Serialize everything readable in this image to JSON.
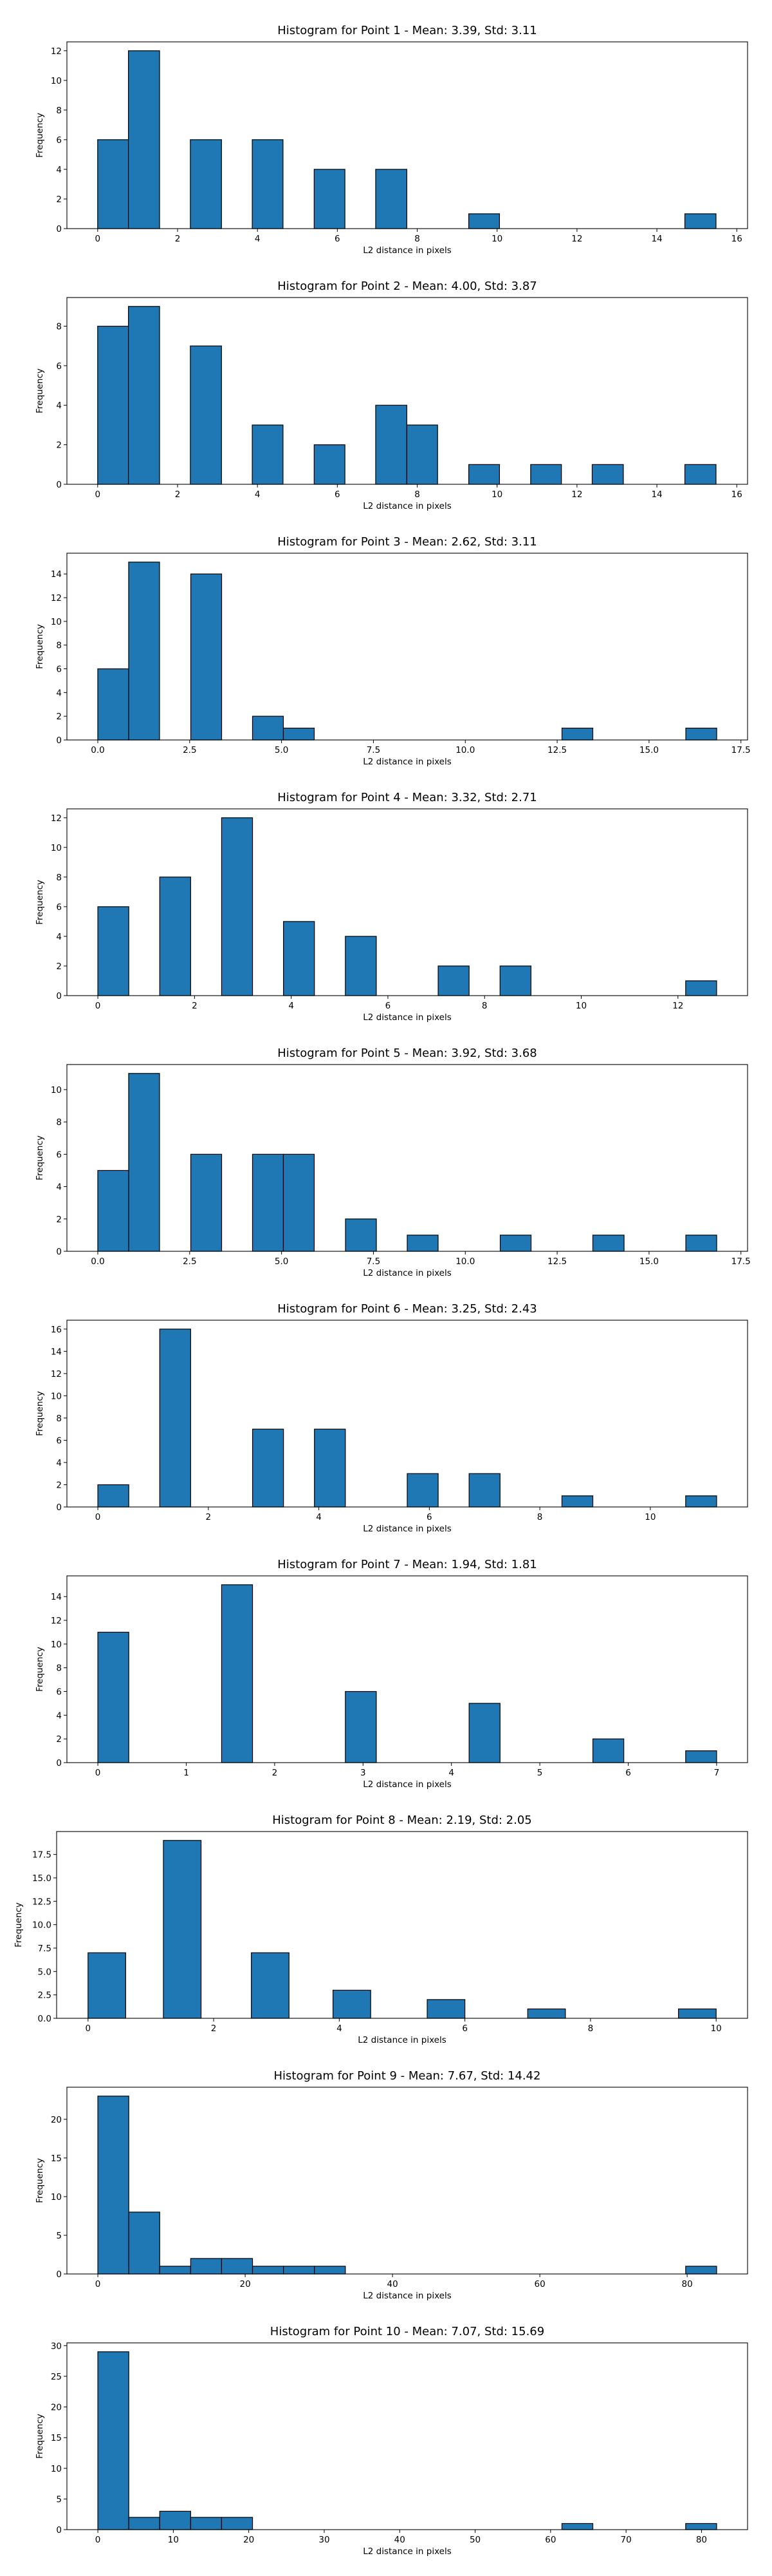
{
  "chart_data": [
    {
      "type": "bar",
      "title": "Histogram for Point 1 - Mean: 3.39, Std: 3.11",
      "xlabel": "L2 distance in pixels",
      "ylabel": "Frequency",
      "xlim": [
        -0.77,
        16.27
      ],
      "ylim": [
        0,
        12.6
      ],
      "xticks": [
        0,
        2,
        4,
        6,
        8,
        10,
        12,
        14,
        16
      ],
      "xticklabels": [
        "0",
        "2",
        "4",
        "6",
        "8",
        "10",
        "12",
        "14",
        "16"
      ],
      "yticks": [
        0,
        2,
        4,
        6,
        8,
        10,
        12
      ],
      "yticklabels": [
        "0",
        "2",
        "4",
        "6",
        "8",
        "10",
        "12"
      ],
      "bins": [
        {
          "x0": 0.0,
          "x1": 0.77,
          "value": 6
        },
        {
          "x0": 0.77,
          "x1": 1.55,
          "value": 12
        },
        {
          "x0": 2.32,
          "x1": 3.1,
          "value": 6
        },
        {
          "x0": 3.87,
          "x1": 4.64,
          "value": 6
        },
        {
          "x0": 5.42,
          "x1": 6.19,
          "value": 4
        },
        {
          "x0": 6.96,
          "x1": 7.74,
          "value": 4
        },
        {
          "x0": 9.29,
          "x1": 10.06,
          "value": 1
        },
        {
          "x0": 14.7,
          "x1": 15.48,
          "value": 1
        }
      ]
    },
    {
      "type": "bar",
      "title": "Histogram for Point 2 - Mean: 4.00, Std: 3.87",
      "xlabel": "L2 distance in pixels",
      "ylabel": "Frequency",
      "xlim": [
        -0.77,
        16.27
      ],
      "ylim": [
        0,
        9.45
      ],
      "xticks": [
        0,
        2,
        4,
        6,
        8,
        10,
        12,
        14,
        16
      ],
      "xticklabels": [
        "0",
        "2",
        "4",
        "6",
        "8",
        "10",
        "12",
        "14",
        "16"
      ],
      "yticks": [
        0,
        2,
        4,
        6,
        8
      ],
      "yticklabels": [
        "0",
        "2",
        "4",
        "6",
        "8"
      ],
      "bins": [
        {
          "x0": 0.0,
          "x1": 0.77,
          "value": 8
        },
        {
          "x0": 0.77,
          "x1": 1.55,
          "value": 9
        },
        {
          "x0": 2.32,
          "x1": 3.1,
          "value": 7
        },
        {
          "x0": 3.87,
          "x1": 4.64,
          "value": 3
        },
        {
          "x0": 5.42,
          "x1": 6.19,
          "value": 2
        },
        {
          "x0": 6.96,
          "x1": 7.74,
          "value": 4
        },
        {
          "x0": 7.74,
          "x1": 8.51,
          "value": 3
        },
        {
          "x0": 9.29,
          "x1": 10.06,
          "value": 1
        },
        {
          "x0": 10.84,
          "x1": 11.61,
          "value": 1
        },
        {
          "x0": 12.38,
          "x1": 13.16,
          "value": 1
        },
        {
          "x0": 14.7,
          "x1": 15.48,
          "value": 1
        }
      ]
    },
    {
      "type": "bar",
      "title": "Histogram for Point 3 - Mean: 2.62, Std: 3.11",
      "xlabel": "L2 distance in pixels",
      "ylabel": "Frequency",
      "xlim": [
        -0.84,
        17.68
      ],
      "ylim": [
        0,
        15.75
      ],
      "xticks": [
        0,
        2.5,
        5,
        7.5,
        10,
        12.5,
        15,
        17.5
      ],
      "xticklabels": [
        "0.0",
        "2.5",
        "5.0",
        "7.5",
        "10.0",
        "12.5",
        "15.0",
        "17.5"
      ],
      "yticks": [
        0,
        2,
        4,
        6,
        8,
        10,
        12,
        14
      ],
      "yticklabels": [
        "0",
        "2",
        "4",
        "6",
        "8",
        "10",
        "12",
        "14"
      ],
      "bins": [
        {
          "x0": 0.0,
          "x1": 0.84,
          "value": 6
        },
        {
          "x0": 0.84,
          "x1": 1.68,
          "value": 15
        },
        {
          "x0": 2.53,
          "x1": 3.37,
          "value": 14
        },
        {
          "x0": 4.21,
          "x1": 5.05,
          "value": 2
        },
        {
          "x0": 5.05,
          "x1": 5.89,
          "value": 1
        },
        {
          "x0": 12.63,
          "x1": 13.47,
          "value": 1
        },
        {
          "x0": 16.0,
          "x1": 16.84,
          "value": 1
        }
      ]
    },
    {
      "type": "bar",
      "title": "Histogram for Point 4 - Mean: 3.32, Std: 2.71",
      "xlabel": "L2 distance in pixels",
      "ylabel": "Frequency",
      "xlim": [
        -0.64,
        13.44
      ],
      "ylim": [
        0,
        12.6
      ],
      "xticks": [
        0,
        2,
        4,
        6,
        8,
        10,
        12
      ],
      "xticklabels": [
        "0",
        "2",
        "4",
        "6",
        "8",
        "10",
        "12"
      ],
      "yticks": [
        0,
        2,
        4,
        6,
        8,
        10,
        12
      ],
      "yticklabels": [
        "0",
        "2",
        "4",
        "6",
        "8",
        "10",
        "12"
      ],
      "bins": [
        {
          "x0": 0.0,
          "x1": 0.64,
          "value": 6
        },
        {
          "x0": 1.28,
          "x1": 1.92,
          "value": 8
        },
        {
          "x0": 2.56,
          "x1": 3.2,
          "value": 12
        },
        {
          "x0": 3.84,
          "x1": 4.48,
          "value": 5
        },
        {
          "x0": 5.12,
          "x1": 5.76,
          "value": 4
        },
        {
          "x0": 7.04,
          "x1": 7.68,
          "value": 2
        },
        {
          "x0": 8.32,
          "x1": 8.96,
          "value": 2
        },
        {
          "x0": 12.16,
          "x1": 12.8,
          "value": 1
        }
      ]
    },
    {
      "type": "bar",
      "title": "Histogram for Point 5 - Mean: 3.92, Std: 3.68",
      "xlabel": "L2 distance in pixels",
      "ylabel": "Frequency",
      "xlim": [
        -0.84,
        17.68
      ],
      "ylim": [
        0,
        11.55
      ],
      "xticks": [
        0,
        2.5,
        5,
        7.5,
        10,
        12.5,
        15,
        17.5
      ],
      "xticklabels": [
        "0.0",
        "2.5",
        "5.0",
        "7.5",
        "10.0",
        "12.5",
        "15.0",
        "17.5"
      ],
      "yticks": [
        0,
        2,
        4,
        6,
        8,
        10
      ],
      "yticklabels": [
        "0",
        "2",
        "4",
        "6",
        "8",
        "10"
      ],
      "bins": [
        {
          "x0": 0.0,
          "x1": 0.84,
          "value": 5
        },
        {
          "x0": 0.84,
          "x1": 1.68,
          "value": 11
        },
        {
          "x0": 2.53,
          "x1": 3.37,
          "value": 6
        },
        {
          "x0": 4.21,
          "x1": 5.05,
          "value": 6
        },
        {
          "x0": 5.05,
          "x1": 5.89,
          "value": 6
        },
        {
          "x0": 6.74,
          "x1": 7.58,
          "value": 2
        },
        {
          "x0": 8.42,
          "x1": 9.26,
          "value": 1
        },
        {
          "x0": 10.95,
          "x1": 11.79,
          "value": 1
        },
        {
          "x0": 13.47,
          "x1": 14.32,
          "value": 1
        },
        {
          "x0": 16.0,
          "x1": 16.84,
          "value": 1
        }
      ]
    },
    {
      "type": "bar",
      "title": "Histogram for Point 6 - Mean: 3.25, Std: 2.43",
      "xlabel": "L2 distance in pixels",
      "ylabel": "Frequency",
      "xlim": [
        -0.56,
        11.76
      ],
      "ylim": [
        0,
        16.8
      ],
      "xticks": [
        0,
        2,
        4,
        6,
        8,
        10
      ],
      "xticklabels": [
        "0",
        "2",
        "4",
        "6",
        "8",
        "10"
      ],
      "yticks": [
        0,
        2,
        4,
        6,
        8,
        10,
        12,
        14,
        16
      ],
      "yticklabels": [
        "0",
        "2",
        "4",
        "6",
        "8",
        "10",
        "12",
        "14",
        "16"
      ],
      "bins": [
        {
          "x0": 0.0,
          "x1": 0.56,
          "value": 2
        },
        {
          "x0": 1.12,
          "x1": 1.68,
          "value": 16
        },
        {
          "x0": 2.8,
          "x1": 3.36,
          "value": 7
        },
        {
          "x0": 3.92,
          "x1": 4.48,
          "value": 7
        },
        {
          "x0": 5.6,
          "x1": 6.16,
          "value": 3
        },
        {
          "x0": 6.72,
          "x1": 7.28,
          "value": 3
        },
        {
          "x0": 8.4,
          "x1": 8.96,
          "value": 1
        },
        {
          "x0": 10.64,
          "x1": 11.2,
          "value": 1
        }
      ]
    },
    {
      "type": "bar",
      "title": "Histogram for Point 7 - Mean: 1.94, Std: 1.81",
      "xlabel": "L2 distance in pixels",
      "ylabel": "Frequency",
      "xlim": [
        -0.35,
        7.35
      ],
      "ylim": [
        0,
        15.75
      ],
      "xticks": [
        0,
        1,
        2,
        3,
        4,
        5,
        6,
        7
      ],
      "xticklabels": [
        "0",
        "1",
        "2",
        "3",
        "4",
        "5",
        "6",
        "7"
      ],
      "yticks": [
        0,
        2,
        4,
        6,
        8,
        10,
        12,
        14
      ],
      "yticklabels": [
        "0",
        "2",
        "4",
        "6",
        "8",
        "10",
        "12",
        "14"
      ],
      "bins": [
        {
          "x0": 0.0,
          "x1": 0.35,
          "value": 11
        },
        {
          "x0": 1.4,
          "x1": 1.75,
          "value": 15
        },
        {
          "x0": 2.8,
          "x1": 3.15,
          "value": 6
        },
        {
          "x0": 4.2,
          "x1": 4.55,
          "value": 5
        },
        {
          "x0": 5.6,
          "x1": 5.95,
          "value": 2
        },
        {
          "x0": 6.65,
          "x1": 7.0,
          "value": 1
        }
      ]
    },
    {
      "type": "bar",
      "title": "Histogram for Point 8 - Mean: 2.19, Std: 2.05",
      "xlabel": "L2 distance in pixels",
      "ylabel": "Frequency",
      "xlim": [
        -0.5,
        10.5
      ],
      "ylim": [
        0,
        19.95
      ],
      "xticks": [
        0,
        2,
        4,
        6,
        8,
        10
      ],
      "xticklabels": [
        "0",
        "2",
        "4",
        "6",
        "8",
        "10"
      ],
      "yticks": [
        0,
        2.5,
        5,
        7.5,
        10,
        12.5,
        15,
        17.5
      ],
      "yticklabels": [
        "0.0",
        "2.5",
        "5.0",
        "7.5",
        "10.0",
        "12.5",
        "15.0",
        "17.5"
      ],
      "bins": [
        {
          "x0": 0.0,
          "x1": 0.6,
          "value": 7
        },
        {
          "x0": 1.2,
          "x1": 1.8,
          "value": 19
        },
        {
          "x0": 2.6,
          "x1": 3.2,
          "value": 7
        },
        {
          "x0": 3.9,
          "x1": 4.5,
          "value": 3
        },
        {
          "x0": 5.4,
          "x1": 6.0,
          "value": 2
        },
        {
          "x0": 7.0,
          "x1": 7.6,
          "value": 1
        },
        {
          "x0": 9.4,
          "x1": 10.0,
          "value": 1
        }
      ]
    },
    {
      "type": "bar",
      "title": "Histogram for Point 9 - Mean: 7.67, Std: 14.42",
      "xlabel": "L2 distance in pixels",
      "ylabel": "Frequency",
      "xlim": [
        -4.2,
        88.2
      ],
      "ylim": [
        0,
        24.15
      ],
      "xticks": [
        0,
        20,
        40,
        60,
        80
      ],
      "xticklabels": [
        "0",
        "20",
        "40",
        "60",
        "80"
      ],
      "yticks": [
        0,
        5,
        10,
        15,
        20
      ],
      "yticklabels": [
        "0",
        "5",
        "10",
        "15",
        "20"
      ],
      "bins": [
        {
          "x0": 0.0,
          "x1": 4.2,
          "value": 23
        },
        {
          "x0": 4.2,
          "x1": 8.4,
          "value": 8
        },
        {
          "x0": 8.4,
          "x1": 12.6,
          "value": 1
        },
        {
          "x0": 12.6,
          "x1": 16.8,
          "value": 2
        },
        {
          "x0": 16.8,
          "x1": 21.0,
          "value": 2
        },
        {
          "x0": 21.0,
          "x1": 25.2,
          "value": 1
        },
        {
          "x0": 25.2,
          "x1": 29.4,
          "value": 1
        },
        {
          "x0": 29.4,
          "x1": 33.6,
          "value": 1
        },
        {
          "x0": 79.8,
          "x1": 84.0,
          "value": 1
        }
      ]
    },
    {
      "type": "bar",
      "title": "Histogram for Point 10 - Mean: 7.07, Std: 15.69",
      "xlabel": "L2 distance in pixels",
      "ylabel": "Frequency",
      "xlim": [
        -4.1,
        86.1
      ],
      "ylim": [
        0,
        30.45
      ],
      "xticks": [
        0,
        10,
        20,
        30,
        40,
        50,
        60,
        70,
        80
      ],
      "xticklabels": [
        "0",
        "10",
        "20",
        "30",
        "40",
        "50",
        "60",
        "70",
        "80"
      ],
      "yticks": [
        0,
        5,
        10,
        15,
        20,
        25,
        30
      ],
      "yticklabels": [
        "0",
        "5",
        "10",
        "15",
        "20",
        "25",
        "30"
      ],
      "bins": [
        {
          "x0": 0.0,
          "x1": 4.1,
          "value": 29
        },
        {
          "x0": 4.1,
          "x1": 8.2,
          "value": 2
        },
        {
          "x0": 8.2,
          "x1": 12.3,
          "value": 3
        },
        {
          "x0": 12.3,
          "x1": 16.4,
          "value": 2
        },
        {
          "x0": 16.4,
          "x1": 20.5,
          "value": 2
        },
        {
          "x0": 61.5,
          "x1": 65.6,
          "value": 1
        },
        {
          "x0": 77.9,
          "x1": 82.0,
          "value": 1
        }
      ]
    }
  ],
  "colors": {
    "bar_fill": "#1f77b4",
    "bar_edge": "#000000",
    "axes_edge": "#000000",
    "background": "#ffffff"
  }
}
